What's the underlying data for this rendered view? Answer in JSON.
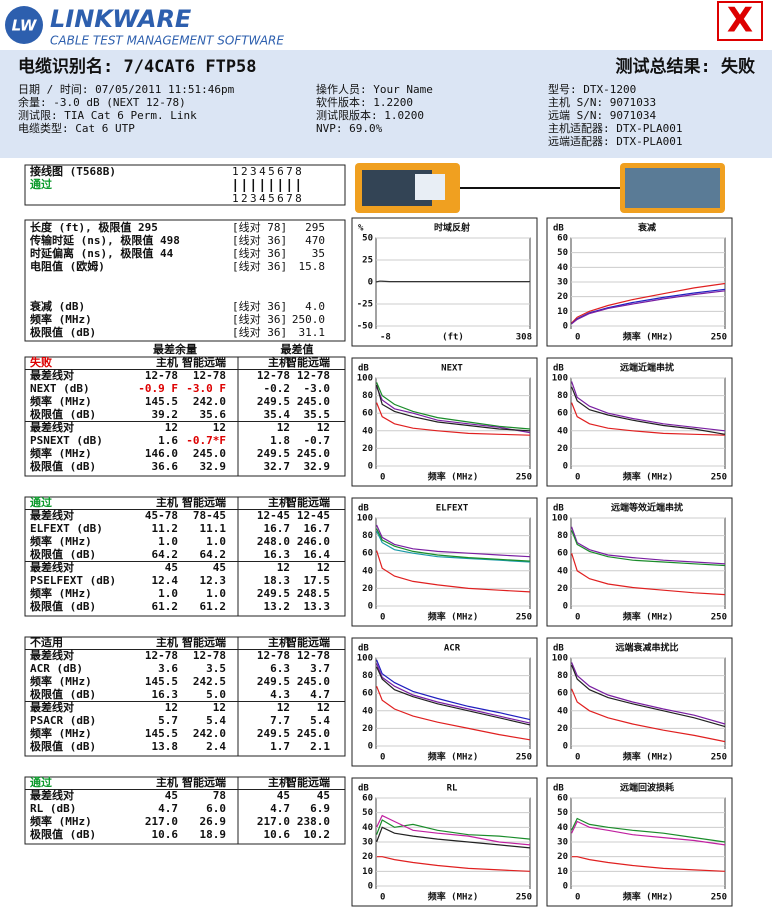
{
  "header": {
    "logo": "LW",
    "brand": "LINKWARE",
    "subtitle": "CABLE TEST MANAGEMENT SOFTWARE",
    "fail_mark": "X"
  },
  "title": "电缆识别名: 7/4CAT6 FTP58",
  "result": "测试总结果: 失败",
  "info": [
    [
      "日期 / 时间: 07/05/2011 11:51:46pm",
      "余量: -3.0 dB (NEXT 12-78)",
      "测试限: TIA Cat 6 Perm. Link",
      "电缆类型: Cat 6 UTP"
    ],
    [
      "操作人员: Your Name",
      "软件版本: 1.2200",
      "测试限版本: 1.0200",
      "NVP: 69.0%"
    ],
    [
      "型号: DTX-1200",
      "主机 S/N: 9071033",
      "远端 S/N: 9071034",
      "主机适配器: DTX-PLA001",
      "远端适配器: DTX-PLA001"
    ]
  ],
  "wiremap": {
    "label": "接线图 (T568B)",
    "status": "通过",
    "pins_top": "12345678",
    "pins_bottom": "12345678"
  },
  "length": [
    [
      "长度 (ft), 极限值 295",
      "[线对 78]",
      "295"
    ],
    [
      "传输时延 (ns), 极限值 498",
      "[线对 36]",
      "470"
    ],
    [
      "时延偏离 (ns), 极限值 44",
      "[线对 36]",
      "35"
    ],
    [
      "电阻值 (欧姆)",
      "[线对 36]",
      "15.8"
    ],
    [
      "衰减 (dB)",
      "[线对 36]",
      "4.0"
    ],
    [
      "频率 (MHz)",
      "[线对 36]",
      "250.0"
    ],
    [
      "极限值 (dB)",
      "[线对 36]",
      "31.1"
    ]
  ],
  "table_heads": [
    "最差余量",
    "最差值"
  ],
  "tables": [
    {
      "status": "失败",
      "header": [
        "主机",
        "智能远端",
        "主机",
        "智能远端"
      ],
      "rows": [
        [
          "最差线对",
          "12-78",
          "12-78",
          "12-78",
          "12-78"
        ],
        [
          "NEXT (dB)",
          "-0.9 F",
          "-3.0 F",
          "-0.2",
          "-3.0"
        ],
        [
          "频率 (MHz)",
          "145.5",
          "242.0",
          "249.5",
          "245.0"
        ],
        [
          "极限值 (dB)",
          "39.2",
          "35.6",
          "35.4",
          "35.5"
        ],
        [
          "最差线对",
          "12",
          "12",
          "12",
          "12"
        ],
        [
          "PSNEXT (dB)",
          "1.6",
          "-0.7*F",
          "1.8",
          "-0.7"
        ],
        [
          "频率 (MHz)",
          "146.0",
          "245.0",
          "249.5",
          "245.0"
        ],
        [
          "极限值 (dB)",
          "36.6",
          "32.9",
          "32.7",
          "32.9"
        ]
      ]
    },
    {
      "status": "通过",
      "header": [
        "主机",
        "智能远端",
        "主机",
        "智能远端"
      ],
      "rows": [
        [
          "最差线对",
          "45-78",
          "78-45",
          "12-45",
          "12-45"
        ],
        [
          "ELFEXT (dB)",
          "11.2",
          "11.1",
          "16.7",
          "16.7"
        ],
        [
          "频率 (MHz)",
          "1.0",
          "1.0",
          "248.0",
          "246.0"
        ],
        [
          "极限值 (dB)",
          "64.2",
          "64.2",
          "16.3",
          "16.4"
        ],
        [
          "最差线对",
          "45",
          "45",
          "12",
          "12"
        ],
        [
          "PSELFEXT (dB)",
          "12.4",
          "12.3",
          "18.3",
          "17.5"
        ],
        [
          "频率 (MHz)",
          "1.0",
          "1.0",
          "249.5",
          "248.5"
        ],
        [
          "极限值 (dB)",
          "61.2",
          "61.2",
          "13.2",
          "13.3"
        ]
      ]
    },
    {
      "status": "不适用",
      "header": [
        "主机",
        "智能远端",
        "主机",
        "智能远端"
      ],
      "rows": [
        [
          "最差线对",
          "12-78",
          "12-78",
          "12-78",
          "12-78"
        ],
        [
          "ACR (dB)",
          "3.6",
          "3.5",
          "6.3",
          "3.7"
        ],
        [
          "频率 (MHz)",
          "145.5",
          "242.5",
          "249.5",
          "245.0"
        ],
        [
          "极限值 (dB)",
          "16.3",
          "5.0",
          "4.3",
          "4.7"
        ],
        [
          "最差线对",
          "12",
          "12",
          "12",
          "12"
        ],
        [
          "PSACR (dB)",
          "5.7",
          "5.4",
          "7.7",
          "5.4"
        ],
        [
          "频率 (MHz)",
          "145.5",
          "242.0",
          "249.5",
          "245.0"
        ],
        [
          "极限值 (dB)",
          "13.8",
          "2.4",
          "1.7",
          "2.1"
        ]
      ]
    },
    {
      "status": "通过",
      "header": [
        "主机",
        "智能远端",
        "主机",
        "智能远端"
      ],
      "rows": [
        [
          "最差线对",
          "45",
          "78",
          "45",
          "45"
        ],
        [
          "RL (dB)",
          "4.7",
          "6.0",
          "4.7",
          "6.9"
        ],
        [
          "频率 (MHz)",
          "217.0",
          "26.9",
          "217.0",
          "238.0"
        ],
        [
          "极限值 (dB)",
          "10.6",
          "18.9",
          "10.6",
          "10.2"
        ]
      ]
    }
  ],
  "charts": [
    {
      "type": "line",
      "title": "时域反射",
      "y_unit": "%",
      "x_label": "(ft)",
      "xlim": [
        -8,
        308
      ],
      "xticks": [
        -8,
        308
      ],
      "ylim": [
        -50,
        50
      ],
      "yticks": [
        50,
        25,
        0,
        -25,
        -50
      ],
      "x": [
        -8,
        0,
        20,
        100,
        200,
        308
      ],
      "series": [
        {
          "color": "#333333",
          "values": [
            0,
            1,
            0.5,
            0.5,
            0.5,
            0.5
          ]
        }
      ]
    },
    {
      "type": "line",
      "title": "衰减",
      "y_unit": "dB",
      "x_label": "频率 (MHz)",
      "xlim": [
        0,
        250
      ],
      "xticks": [
        0,
        250
      ],
      "ylim": [
        0,
        60
      ],
      "yticks": [
        60,
        50,
        40,
        30,
        20,
        10,
        0
      ],
      "x": [
        1,
        10,
        30,
        60,
        100,
        150,
        200,
        250
      ],
      "series": [
        {
          "color": "#e02020",
          "values": [
            2,
            6,
            10,
            14,
            18,
            22,
            26,
            29
          ]
        },
        {
          "color": "#2020c0",
          "values": [
            1.5,
            5,
            9,
            12.5,
            16,
            19.5,
            22.5,
            25
          ]
        },
        {
          "color": "#7a1fa2",
          "values": [
            1.5,
            4.5,
            8.5,
            12,
            15,
            18.5,
            21.5,
            24
          ]
        }
      ]
    },
    {
      "type": "line",
      "title": "NEXT",
      "y_unit": "dB",
      "x_label": "频率 (MHz)",
      "xlim": [
        0,
        250
      ],
      "xticks": [
        0,
        250
      ],
      "ylim": [
        0,
        100
      ],
      "yticks": [
        100,
        80,
        60,
        40,
        20,
        0
      ],
      "x": [
        1,
        10,
        30,
        60,
        100,
        150,
        200,
        250
      ],
      "series": [
        {
          "color": "#e02020",
          "values": [
            72,
            56,
            48,
            43,
            40,
            37,
            36,
            35
          ]
        },
        {
          "color": "#1a8c2a",
          "values": [
            95,
            80,
            70,
            62,
            55,
            50,
            45,
            42
          ]
        },
        {
          "color": "#7a1fa2",
          "values": [
            90,
            75,
            65,
            60,
            52,
            48,
            44,
            38
          ]
        },
        {
          "color": "#222222",
          "values": [
            92,
            70,
            62,
            56,
            50,
            46,
            42,
            40
          ]
        }
      ]
    },
    {
      "type": "line",
      "title": "远端近端串扰",
      "y_unit": "dB",
      "x_label": "频率 (MHz)",
      "xlim": [
        0,
        250
      ],
      "xticks": [
        0,
        250
      ],
      "ylim": [
        0,
        100
      ],
      "yticks": [
        100,
        80,
        60,
        40,
        20,
        0
      ],
      "x": [
        1,
        10,
        30,
        60,
        100,
        150,
        200,
        250
      ],
      "series": [
        {
          "color": "#e02020",
          "values": [
            72,
            56,
            48,
            43,
            40,
            37,
            36,
            35
          ]
        },
        {
          "color": "#7a1fa2",
          "values": [
            96,
            78,
            68,
            60,
            54,
            48,
            44,
            40
          ]
        },
        {
          "color": "#222222",
          "values": [
            90,
            74,
            64,
            58,
            52,
            46,
            42,
            36
          ]
        }
      ]
    },
    {
      "type": "line",
      "title": "ELFEXT",
      "y_unit": "dB",
      "x_label": "频率 (MHz)",
      "xlim": [
        0,
        250
      ],
      "xticks": [
        0,
        250
      ],
      "ylim": [
        0,
        100
      ],
      "yticks": [
        100,
        80,
        60,
        40,
        20,
        0
      ],
      "x": [
        1,
        10,
        30,
        60,
        100,
        150,
        200,
        250
      ],
      "series": [
        {
          "color": "#e02020",
          "values": [
            63,
            43,
            34,
            28,
            24,
            20,
            18,
            16
          ]
        },
        {
          "color": "#7a1fa2",
          "values": [
            92,
            78,
            70,
            65,
            62,
            60,
            58,
            56
          ]
        },
        {
          "color": "#1a9aa8",
          "values": [
            85,
            72,
            64,
            60,
            56,
            54,
            52,
            50
          ]
        },
        {
          "color": "#1a8c2a",
          "values": [
            88,
            75,
            68,
            62,
            58,
            55,
            53,
            51
          ]
        }
      ]
    },
    {
      "type": "line",
      "title": "远端等效近端串扰",
      "y_unit": "dB",
      "x_label": "频率 (MHz)",
      "xlim": [
        0,
        250
      ],
      "xticks": [
        0,
        250
      ],
      "ylim": [
        0,
        100
      ],
      "yticks": [
        100,
        80,
        60,
        40,
        20,
        0
      ],
      "x": [
        1,
        10,
        30,
        60,
        100,
        150,
        200,
        250
      ],
      "series": [
        {
          "color": "#e02020",
          "values": [
            60,
            40,
            31,
            25,
            21,
            18,
            15,
            13
          ]
        },
        {
          "color": "#7a1fa2",
          "values": [
            90,
            72,
            64,
            58,
            55,
            52,
            50,
            48
          ]
        },
        {
          "color": "#1a8c2a",
          "values": [
            86,
            70,
            62,
            56,
            52,
            50,
            48,
            46
          ]
        }
      ]
    },
    {
      "type": "line",
      "title": "ACR",
      "y_unit": "dB",
      "x_label": "频率 (MHz)",
      "xlim": [
        0,
        250
      ],
      "xticks": [
        0,
        250
      ],
      "ylim": [
        0,
        100
      ],
      "yticks": [
        100,
        80,
        60,
        40,
        20,
        0
      ],
      "x": [
        1,
        10,
        30,
        60,
        100,
        150,
        200,
        250
      ],
      "series": [
        {
          "color": "#e02020",
          "values": [
            68,
            52,
            42,
            34,
            27,
            20,
            13,
            7
          ]
        },
        {
          "color": "#2020c0",
          "values": [
            98,
            82,
            72,
            62,
            54,
            45,
            38,
            30
          ]
        },
        {
          "color": "#7a1fa2",
          "values": [
            94,
            78,
            68,
            58,
            50,
            42,
            34,
            26
          ]
        },
        {
          "color": "#222222",
          "values": [
            90,
            76,
            64,
            56,
            48,
            40,
            32,
            24
          ]
        }
      ]
    },
    {
      "type": "line",
      "title": "远端衰减串扰比",
      "y_unit": "dB",
      "x_label": "频率 (MHz)",
      "xlim": [
        0,
        250
      ],
      "xticks": [
        0,
        250
      ],
      "ylim": [
        0,
        100
      ],
      "yticks": [
        100,
        80,
        60,
        40,
        20,
        0
      ],
      "x": [
        1,
        10,
        30,
        60,
        100,
        150,
        200,
        250
      ],
      "series": [
        {
          "color": "#e02020",
          "values": [
            65,
            50,
            40,
            32,
            25,
            18,
            12,
            5
          ]
        },
        {
          "color": "#7a1fa2",
          "values": [
            95,
            80,
            68,
            58,
            50,
            42,
            35,
            25
          ]
        },
        {
          "color": "#222222",
          "values": [
            92,
            76,
            64,
            55,
            48,
            40,
            32,
            22
          ]
        }
      ]
    },
    {
      "type": "line",
      "title": "RL",
      "y_unit": "dB",
      "x_label": "频率 (MHz)",
      "xlim": [
        0,
        250
      ],
      "xticks": [
        0,
        250
      ],
      "ylim": [
        0,
        60
      ],
      "yticks": [
        60,
        50,
        40,
        30,
        20,
        10,
        0
      ],
      "x": [
        1,
        10,
        30,
        60,
        100,
        150,
        200,
        250
      ],
      "series": [
        {
          "color": "#e02020",
          "values": [
            20,
            20,
            18,
            16,
            14,
            12,
            11,
            10
          ]
        },
        {
          "color": "#1a8c2a",
          "values": [
            35,
            45,
            40,
            42,
            38,
            35,
            34,
            32
          ]
        },
        {
          "color": "#c020a0",
          "values": [
            40,
            48,
            44,
            38,
            36,
            34,
            30,
            28
          ]
        },
        {
          "color": "#222222",
          "values": [
            30,
            40,
            36,
            34,
            32,
            30,
            28,
            26
          ]
        }
      ]
    },
    {
      "type": "line",
      "title": "远端回波损耗",
      "y_unit": "dB",
      "x_label": "频率 (MHz)",
      "xlim": [
        0,
        250
      ],
      "xticks": [
        0,
        250
      ],
      "ylim": [
        0,
        60
      ],
      "yticks": [
        60,
        50,
        40,
        30,
        20,
        10,
        0
      ],
      "x": [
        1,
        10,
        30,
        60,
        100,
        150,
        200,
        250
      ],
      "series": [
        {
          "color": "#e02020",
          "values": [
            20,
            20,
            18,
            16,
            14,
            12,
            11,
            10
          ]
        },
        {
          "color": "#1a8c2a",
          "values": [
            38,
            46,
            42,
            40,
            38,
            36,
            33,
            30
          ]
        },
        {
          "color": "#c020a0",
          "values": [
            36,
            44,
            40,
            38,
            35,
            33,
            31,
            28
          ]
        }
      ]
    }
  ]
}
